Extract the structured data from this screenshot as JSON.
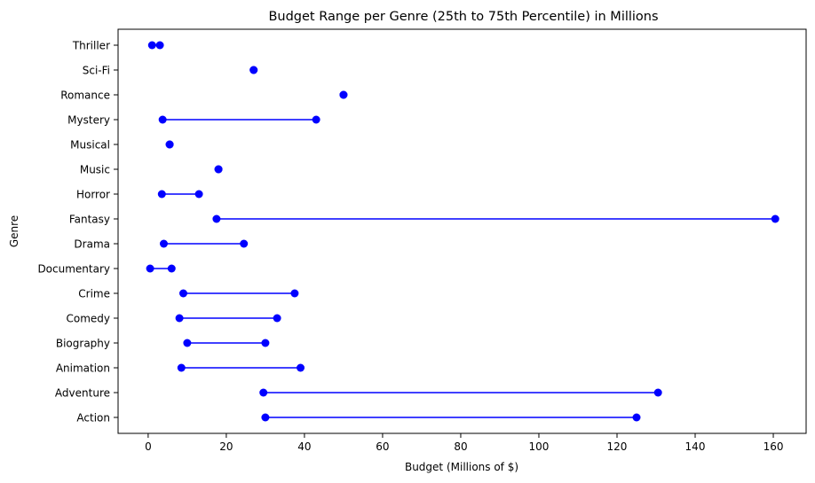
{
  "chart_data": {
    "type": "dumbbell",
    "title": "Budget Range per Genre (25th to 75th Percentile) in Millions",
    "xlabel": "Budget (Millions of $)",
    "ylabel": "Genre",
    "xlim": [
      -7.7,
      168.4
    ],
    "xticks": [
      "0",
      "20",
      "40",
      "60",
      "80",
      "100",
      "120",
      "140",
      "160"
    ],
    "color": "#0000ff",
    "genres": [
      "Action",
      "Adventure",
      "Animation",
      "Biography",
      "Comedy",
      "Crime",
      "Documentary",
      "Drama",
      "Fantasy",
      "Horror",
      "Music",
      "Musical",
      "Mystery",
      "Romance",
      "Sci-Fi",
      "Thriller"
    ],
    "low": [
      30.0,
      29.5,
      8.5,
      10.0,
      8.0,
      9.0,
      0.5,
      4.0,
      17.5,
      3.5,
      18.0,
      5.5,
      3.7,
      50.0,
      27.0,
      1.0
    ],
    "high": [
      125.0,
      130.5,
      39.0,
      30.0,
      33.0,
      37.5,
      6.0,
      24.5,
      160.5,
      13.0,
      18.0,
      5.5,
      43.0,
      50.0,
      27.0,
      3.0
    ]
  }
}
